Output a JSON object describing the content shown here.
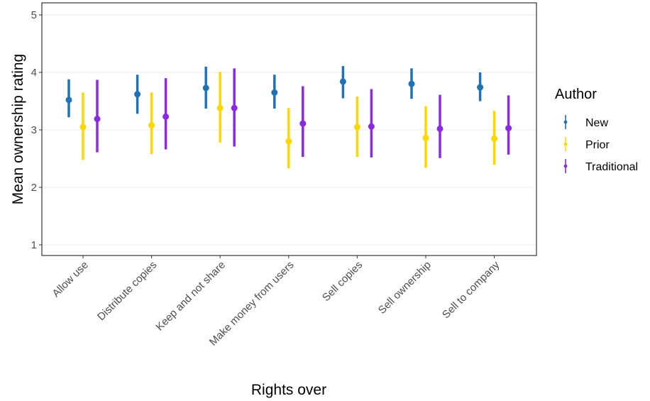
{
  "chart_data": {
    "type": "scatter",
    "subtype": "point-range",
    "xlabel": "Rights over",
    "ylabel": "Mean ownership rating",
    "ylim": [
      0.8,
      5.2
    ],
    "yticks": [
      1,
      2,
      3,
      4,
      5
    ],
    "grid": "horizontal major only",
    "categories": [
      "Allow use",
      "Distribute copies",
      "Keep and not share",
      "Make money from users",
      "Sell copies",
      "Sell ownership",
      "Sell to company"
    ],
    "legend": {
      "title": "Author",
      "position": "right"
    },
    "series": [
      {
        "name": "New",
        "color": "#2171b5",
        "values": [
          3.52,
          3.62,
          3.73,
          3.65,
          3.84,
          3.8,
          3.74
        ],
        "lower": [
          3.22,
          3.28,
          3.37,
          3.37,
          3.55,
          3.54,
          3.5
        ],
        "upper": [
          3.88,
          3.96,
          4.1,
          3.96,
          4.11,
          4.07,
          4.0
        ]
      },
      {
        "name": "Prior",
        "color": "#ffd700",
        "values": [
          3.05,
          3.08,
          3.38,
          2.8,
          3.05,
          2.86,
          2.85
        ],
        "lower": [
          2.48,
          2.58,
          2.78,
          2.33,
          2.53,
          2.34,
          2.39
        ],
        "upper": [
          3.65,
          3.65,
          4.01,
          3.38,
          3.58,
          3.41,
          3.33
        ]
      },
      {
        "name": "Traditional",
        "color": "#8a2be2",
        "values": [
          3.19,
          3.23,
          3.38,
          3.11,
          3.06,
          3.02,
          3.03
        ],
        "lower": [
          2.61,
          2.66,
          2.71,
          2.53,
          2.52,
          2.51,
          2.57
        ],
        "upper": [
          3.87,
          3.9,
          4.07,
          3.76,
          3.71,
          3.61,
          3.6
        ]
      }
    ]
  }
}
